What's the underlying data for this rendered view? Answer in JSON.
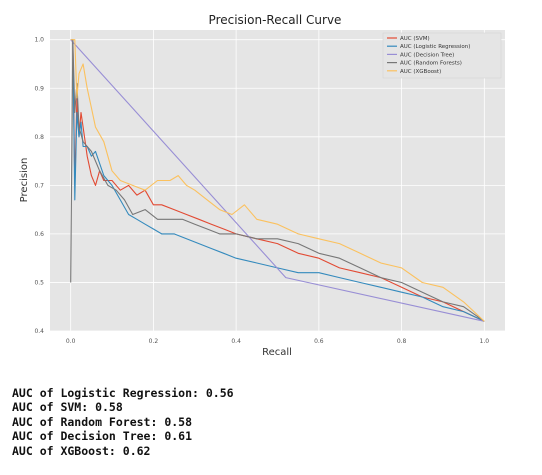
{
  "chart_data": {
    "type": "line",
    "title": "Precision-Recall Curve",
    "xlabel": "Recall",
    "ylabel": "Precision",
    "xlim": [
      -0.05,
      1.05
    ],
    "ylim": [
      0.4,
      1.02
    ],
    "xticks": [
      "0.0",
      "0.2",
      "0.4",
      "0.6",
      "0.8",
      "1.0"
    ],
    "yticks": [
      "0.4",
      "0.5",
      "0.6",
      "0.7",
      "0.8",
      "0.9",
      "1.0"
    ],
    "grid": true,
    "legend_position": "top-right",
    "series": [
      {
        "name": "AUC (SVM)",
        "color": "#e24a33",
        "x": [
          0.0,
          0.005,
          0.01,
          0.015,
          0.02,
          0.025,
          0.03,
          0.04,
          0.05,
          0.06,
          0.07,
          0.08,
          0.1,
          0.12,
          0.14,
          0.16,
          0.18,
          0.2,
          0.22,
          0.25,
          0.28,
          0.31,
          0.34,
          0.37,
          0.4,
          0.45,
          0.5,
          0.55,
          0.6,
          0.65,
          0.7,
          0.75,
          0.8,
          0.85,
          0.9,
          0.95,
          1.0
        ],
        "y": [
          1.0,
          1.0,
          0.7,
          0.88,
          0.8,
          0.85,
          0.82,
          0.76,
          0.72,
          0.7,
          0.73,
          0.71,
          0.71,
          0.69,
          0.7,
          0.68,
          0.69,
          0.66,
          0.66,
          0.65,
          0.64,
          0.63,
          0.62,
          0.61,
          0.6,
          0.59,
          0.58,
          0.56,
          0.55,
          0.53,
          0.52,
          0.51,
          0.49,
          0.47,
          0.46,
          0.44,
          0.42
        ]
      },
      {
        "name": "AUC (Logistic Regression)",
        "color": "#348abd",
        "x": [
          0.0,
          0.005,
          0.01,
          0.015,
          0.02,
          0.025,
          0.03,
          0.04,
          0.05,
          0.06,
          0.08,
          0.1,
          0.12,
          0.14,
          0.16,
          0.18,
          0.2,
          0.22,
          0.25,
          0.28,
          0.31,
          0.34,
          0.37,
          0.4,
          0.45,
          0.5,
          0.55,
          0.6,
          0.65,
          0.7,
          0.75,
          0.8,
          0.85,
          0.9,
          0.95,
          1.0
        ],
        "y": [
          1.0,
          1.0,
          0.67,
          0.85,
          0.8,
          0.83,
          0.78,
          0.78,
          0.76,
          0.77,
          0.72,
          0.7,
          0.67,
          0.64,
          0.63,
          0.62,
          0.61,
          0.6,
          0.6,
          0.59,
          0.58,
          0.57,
          0.56,
          0.55,
          0.54,
          0.53,
          0.52,
          0.52,
          0.51,
          0.5,
          0.49,
          0.48,
          0.47,
          0.45,
          0.44,
          0.42
        ]
      },
      {
        "name": "AUC (Decision Tree)",
        "color": "#988ed5",
        "x": [
          0.0,
          0.52,
          1.0
        ],
        "y": [
          1.0,
          0.51,
          0.42
        ]
      },
      {
        "name": "AUC (Random Forests)",
        "color": "#777777",
        "x": [
          0.0,
          0.005,
          0.01,
          0.015,
          0.02,
          0.03,
          0.04,
          0.05,
          0.07,
          0.09,
          0.11,
          0.13,
          0.15,
          0.18,
          0.21,
          0.24,
          0.27,
          0.3,
          0.33,
          0.36,
          0.4,
          0.45,
          0.5,
          0.55,
          0.6,
          0.65,
          0.7,
          0.75,
          0.8,
          0.85,
          0.9,
          0.95,
          1.0
        ],
        "y": [
          0.5,
          1.0,
          0.85,
          0.91,
          0.82,
          0.79,
          0.78,
          0.77,
          0.73,
          0.7,
          0.69,
          0.67,
          0.64,
          0.65,
          0.63,
          0.63,
          0.63,
          0.62,
          0.61,
          0.6,
          0.6,
          0.59,
          0.59,
          0.58,
          0.56,
          0.55,
          0.53,
          0.51,
          0.5,
          0.48,
          0.46,
          0.45,
          0.42
        ]
      },
      {
        "name": "AUC (XGBoost)",
        "color": "#fbc15e",
        "x": [
          0.0,
          0.005,
          0.01,
          0.015,
          0.02,
          0.03,
          0.04,
          0.05,
          0.06,
          0.08,
          0.1,
          0.12,
          0.15,
          0.18,
          0.21,
          0.24,
          0.26,
          0.28,
          0.3,
          0.33,
          0.36,
          0.39,
          0.42,
          0.45,
          0.5,
          0.55,
          0.6,
          0.65,
          0.7,
          0.75,
          0.8,
          0.85,
          0.9,
          0.95,
          1.0
        ],
        "y": [
          1.0,
          1.0,
          1.0,
          0.88,
          0.93,
          0.95,
          0.9,
          0.86,
          0.82,
          0.79,
          0.73,
          0.71,
          0.7,
          0.69,
          0.71,
          0.71,
          0.72,
          0.7,
          0.69,
          0.67,
          0.65,
          0.64,
          0.66,
          0.63,
          0.62,
          0.6,
          0.59,
          0.58,
          0.56,
          0.54,
          0.53,
          0.5,
          0.49,
          0.46,
          0.42
        ]
      }
    ]
  },
  "output_lines": [
    "AUC of Logistic Regression: 0.56",
    "AUC of SVM: 0.58",
    "AUC of Random Forest: 0.58",
    "AUC of Decision Tree: 0.61",
    "AUC of XGBoost: 0.62"
  ]
}
